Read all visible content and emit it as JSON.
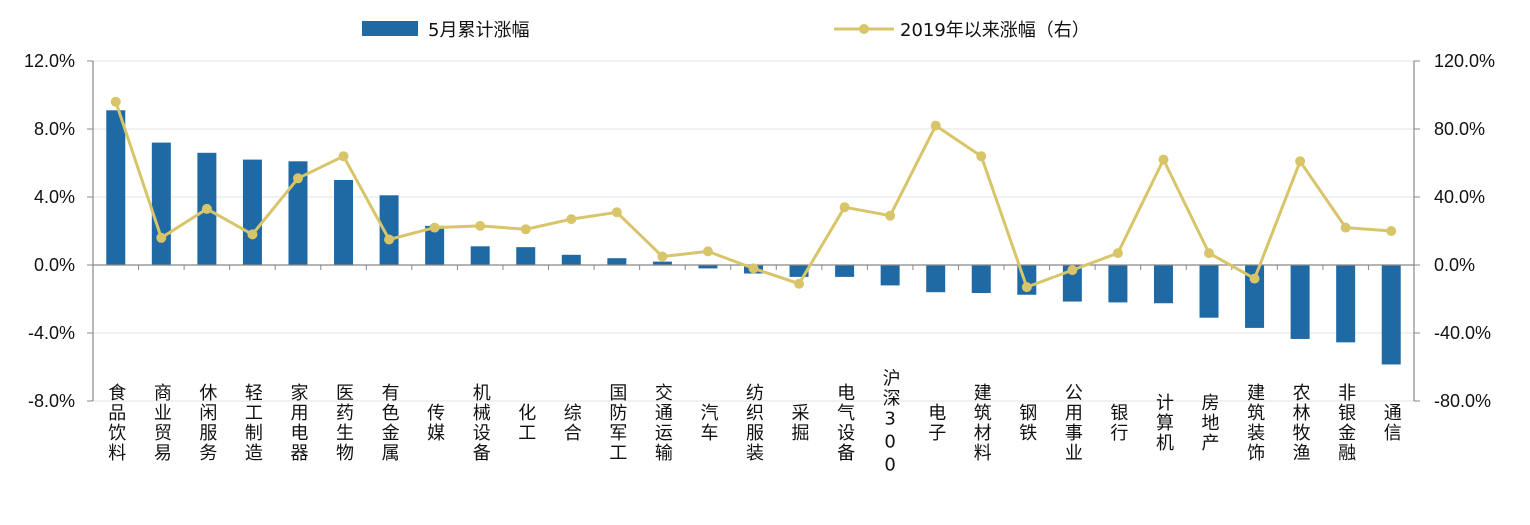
{
  "chart_data": {
    "type": "bar+line",
    "title": "",
    "categories": [
      "食品饮料",
      "商业贸易",
      "休闲服务",
      "轻工制造",
      "家用电器",
      "医药生物",
      "有色金属",
      "传媒",
      "机械设备",
      "化工",
      "综合",
      "国防军工",
      "交通运输",
      "汽车",
      "纺织服装",
      "采掘",
      "电气设备",
      "沪深300",
      "电子",
      "建筑材料",
      "钢铁",
      "公用事业",
      "银行",
      "计算机",
      "房地产",
      "建筑装饰",
      "农林牧渔",
      "非银金融",
      "通信"
    ],
    "series": [
      {
        "name": "5月累计涨幅",
        "kind": "bar",
        "axis": "left",
        "color": "#1f6aa5",
        "values": [
          9.1,
          7.2,
          6.6,
          6.2,
          6.1,
          5.0,
          4.1,
          2.3,
          1.1,
          1.05,
          0.6,
          0.4,
          0.2,
          -0.2,
          -0.5,
          -0.7,
          -0.7,
          -1.2,
          -1.6,
          -1.65,
          -1.75,
          -2.15,
          -2.2,
          -2.25,
          -3.1,
          -3.7,
          -4.35,
          -4.55,
          -5.85
        ]
      },
      {
        "name": "2019年以来涨幅（右）",
        "kind": "line",
        "axis": "right",
        "color": "#d8c56a",
        "values": [
          96,
          16,
          33,
          18,
          51,
          64,
          15,
          22,
          23,
          21,
          27,
          31,
          5,
          8,
          -2,
          -11,
          34,
          29,
          82,
          64,
          -13,
          -3,
          7,
          62,
          7,
          -8,
          61,
          22,
          20
        ]
      }
    ],
    "y_left": {
      "min": -8,
      "max": 12,
      "step": 4,
      "ticks": [
        "-8.0%",
        "-4.0%",
        "0.0%",
        "4.0%",
        "8.0%",
        "12.0%"
      ]
    },
    "y_right": {
      "min": -80,
      "max": 120,
      "step": 40,
      "ticks": [
        "-80.0%",
        "-40.0%",
        "0.0%",
        "40.0%",
        "80.0%",
        "120.0%"
      ]
    },
    "grid": true,
    "legend_position": "top"
  }
}
